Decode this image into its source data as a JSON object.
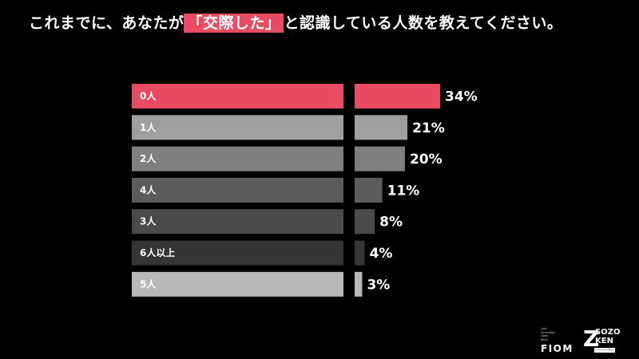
{
  "title": {
    "before": "これまでに、あなたが",
    "highlight": "「交際した」",
    "after": "と認識している人数を教えてください。"
  },
  "chart_data": {
    "type": "bar",
    "orientation": "horizontal",
    "categories": [
      "0人",
      "1人",
      "2人",
      "4人",
      "3人",
      "6人以上",
      "5人"
    ],
    "values": [
      34,
      21,
      20,
      11,
      8,
      4,
      3
    ],
    "value_labels": [
      "34%",
      "21%",
      "20%",
      "11%",
      "8%",
      "4%",
      "3%"
    ],
    "unit": "%",
    "colors": [
      "#e94b63",
      "#9f9f9f",
      "#7f7f7f",
      "#5b5b5b",
      "#4a4a4a",
      "#353535",
      "#b9b9b9"
    ]
  },
  "logos": {
    "fiom_small": [
      "Last",
      "Innovation",
      "Open",
      "Mind"
    ],
    "fiom_big": "FIOM",
    "zk_z": "Z",
    "zk_sozo": "SOZO",
    "zk_ken": "KEN",
    "zk_tag": "ソーゾーケン"
  }
}
